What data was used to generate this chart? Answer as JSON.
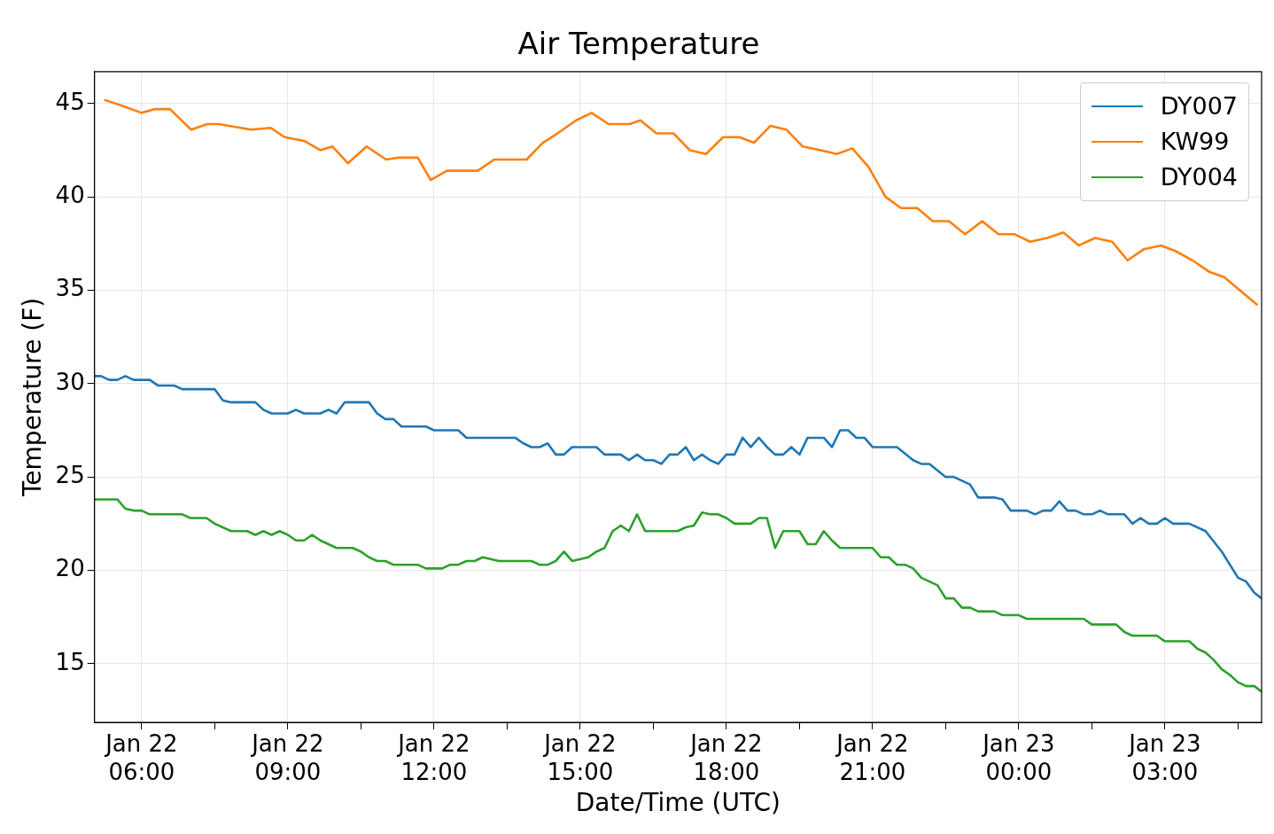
{
  "chart_data": {
    "type": "line",
    "title": "Air Temperature",
    "xlabel": "Date/Time (UTC)",
    "ylabel": "Temperature (F)",
    "xlim": [
      "--01-22T05:02",
      "--01-23T04:59"
    ],
    "ylim": [
      11.86,
      46.71
    ],
    "xticks": [
      {
        "value": "--01-22T06:00",
        "label": "Jan 22\n06:00"
      },
      {
        "value": "--01-22T07:30",
        "label": null
      },
      {
        "value": "--01-22T09:00",
        "label": "Jan 22\n09:00"
      },
      {
        "value": "--01-22T10:30",
        "label": null
      },
      {
        "value": "--01-22T12:00",
        "label": "Jan 22\n12:00"
      },
      {
        "value": "--01-22T13:30",
        "label": null
      },
      {
        "value": "--01-22T15:00",
        "label": "Jan 22\n15:00"
      },
      {
        "value": "--01-22T16:30",
        "label": null
      },
      {
        "value": "--01-22T18:00",
        "label": "Jan 22\n18:00"
      },
      {
        "value": "--01-22T19:30",
        "label": null
      },
      {
        "value": "--01-22T21:00",
        "label": "Jan 22\n21:00"
      },
      {
        "value": "--01-22T22:30",
        "label": null
      },
      {
        "value": "--01-23T00:00",
        "label": "Jan 23\n00:00"
      },
      {
        "value": "--01-23T01:30",
        "label": null
      },
      {
        "value": "--01-23T03:00",
        "label": "Jan 23\n03:00"
      },
      {
        "value": "--01-23T04:30",
        "label": null
      }
    ],
    "yticks": [
      15,
      20,
      25,
      30,
      35,
      40,
      45
    ],
    "grid": true,
    "legend": "top right",
    "series": [
      {
        "name": "DY007",
        "color": "#1f77b4",
        "x": [
          "--01-22T05:02",
          "--01-22T05:10",
          "--01-22T05:20",
          "--01-22T05:30",
          "--01-22T05:40",
          "--01-22T05:50",
          "--01-22T06:10",
          "--01-22T06:20",
          "--01-22T06:40",
          "--01-22T06:50",
          "--01-22T07:30",
          "--01-22T07:40",
          "--01-22T07:50",
          "--01-22T08:20",
          "--01-22T08:30",
          "--01-22T08:40",
          "--01-22T09:00",
          "--01-22T09:10",
          "--01-22T09:20",
          "--01-22T09:40",
          "--01-22T09:50",
          "--01-22T10:00",
          "--01-22T10:10",
          "--01-22T10:40",
          "--01-22T10:50",
          "--01-22T11:00",
          "--01-22T11:10",
          "--01-22T11:20",
          "--01-22T11:50",
          "--01-22T12:00",
          "--01-22T12:30",
          "--01-22T12:40",
          "--01-22T13:05",
          "--01-22T13:40",
          "--01-22T13:50",
          "--01-22T14:00",
          "--01-22T14:10",
          "--01-22T14:20",
          "--01-22T14:30",
          "--01-22T14:40",
          "--01-22T14:50",
          "--01-22T15:20",
          "--01-22T15:30",
          "--01-22T15:50",
          "--01-22T16:00",
          "--01-22T16:10",
          "--01-22T16:20",
          "--01-22T16:30",
          "--01-22T16:40",
          "--01-22T16:50",
          "--01-22T17:00",
          "--01-22T17:10",
          "--01-22T17:20",
          "--01-22T17:30",
          "--01-22T17:40",
          "--01-22T17:50",
          "--01-22T18:00",
          "--01-22T18:10",
          "--01-22T18:20",
          "--01-22T18:30",
          "--01-22T18:40",
          "--01-22T18:50",
          "--01-22T19:00",
          "--01-22T19:10",
          "--01-22T19:20",
          "--01-22T19:30",
          "--01-22T19:40",
          "--01-22T20:00",
          "--01-22T20:10",
          "--01-22T20:20",
          "--01-22T20:30",
          "--01-22T20:40",
          "--01-22T20:50",
          "--01-22T21:00",
          "--01-22T21:30",
          "--01-22T21:50",
          "--01-22T22:00",
          "--01-22T22:10",
          "--01-22T22:30",
          "--01-22T22:40",
          "--01-22T23:00",
          "--01-22T23:10",
          "--01-22T23:30",
          "--01-22T23:40",
          "--01-22T23:50",
          "--01-23T00:10",
          "--01-23T00:20",
          "--01-23T00:30",
          "--01-23T00:40",
          "--01-23T00:50",
          "--01-23T01:00",
          "--01-23T01:10",
          "--01-23T01:20",
          "--01-23T01:30",
          "--01-23T01:40",
          "--01-23T01:50",
          "--01-23T02:10",
          "--01-23T02:20",
          "--01-23T02:30",
          "--01-23T02:40",
          "--01-23T02:50",
          "--01-23T03:00",
          "--01-23T03:10",
          "--01-23T03:30",
          "--01-23T03:50",
          "--01-23T04:10",
          "--01-23T04:30",
          "--01-23T04:40",
          "--01-23T04:50",
          "--01-23T04:59"
        ],
        "values": [
          30.4,
          30.4,
          30.2,
          30.2,
          30.4,
          30.2,
          30.2,
          29.9,
          29.9,
          29.7,
          29.7,
          29.1,
          29.0,
          29.0,
          28.6,
          28.4,
          28.4,
          28.6,
          28.4,
          28.4,
          28.6,
          28.4,
          29.0,
          29.0,
          28.4,
          28.1,
          28.1,
          27.7,
          27.7,
          27.5,
          27.5,
          27.1,
          27.1,
          27.1,
          26.8,
          26.6,
          26.6,
          26.8,
          26.2,
          26.2,
          26.6,
          26.6,
          26.2,
          26.2,
          25.9,
          26.2,
          25.9,
          25.9,
          25.7,
          26.2,
          26.2,
          26.6,
          25.9,
          26.2,
          25.9,
          25.7,
          26.2,
          26.2,
          27.1,
          26.6,
          27.1,
          26.6,
          26.2,
          26.2,
          26.6,
          26.2,
          27.1,
          27.1,
          26.6,
          27.5,
          27.5,
          27.1,
          27.1,
          26.6,
          26.6,
          25.9,
          25.7,
          25.7,
          25.0,
          25.0,
          24.6,
          23.9,
          23.9,
          23.8,
          23.2,
          23.2,
          23.0,
          23.2,
          23.2,
          23.7,
          23.2,
          23.2,
          23.0,
          23.0,
          23.2,
          23.0,
          23.0,
          22.5,
          22.8,
          22.5,
          22.5,
          22.8,
          22.5,
          22.5,
          22.1,
          21.0,
          19.6,
          19.4,
          18.8,
          18.5
        ]
      },
      {
        "name": "KW99",
        "color": "#ff7f0e",
        "x": [
          "--01-22T05:14",
          "--01-22T05:35",
          "--01-22T06:00",
          "--01-22T06:16",
          "--01-22T06:35",
          "--01-22T07:01",
          "--01-22T07:21",
          "--01-22T07:35",
          "--01-22T08:15",
          "--01-22T08:39",
          "--01-22T08:56",
          "--01-22T09:20",
          "--01-22T09:40",
          "--01-22T09:55",
          "--01-22T10:14",
          "--01-22T10:37",
          "--01-22T11:01",
          "--01-22T11:15",
          "--01-22T11:40",
          "--01-22T11:56",
          "--01-22T12:16",
          "--01-22T12:54",
          "--01-22T13:14",
          "--01-22T13:54",
          "--01-22T14:14",
          "--01-22T14:32",
          "--01-22T14:55",
          "--01-22T15:14",
          "--01-22T15:35",
          "--01-22T16:01",
          "--01-22T16:14",
          "--01-22T16:34",
          "--01-22T16:55",
          "--01-22T17:15",
          "--01-22T17:35",
          "--01-22T17:56",
          "--01-22T18:16",
          "--01-22T18:34",
          "--01-22T18:54",
          "--01-22T19:14",
          "--01-22T19:34",
          "--01-22T19:56",
          "--01-22T20:16",
          "--01-22T20:35",
          "--01-22T20:55",
          "--01-22T21:16",
          "--01-22T21:35",
          "--01-22T21:55",
          "--01-22T22:14",
          "--01-22T22:34",
          "--01-22T22:54",
          "--01-22T23:15",
          "--01-22T23:35",
          "--01-22T23:55",
          "--01-23T00:14",
          "--01-23T00:35",
          "--01-23T00:55",
          "--01-23T01:14",
          "--01-23T01:34",
          "--01-23T01:55",
          "--01-23T02:14",
          "--01-23T02:34",
          "--01-23T02:55",
          "--01-23T03:13",
          "--01-23T03:34",
          "--01-23T03:54",
          "--01-23T04:13",
          "--01-23T04:54"
        ],
        "values": [
          45.2,
          44.9,
          44.5,
          44.7,
          44.7,
          43.6,
          43.9,
          43.9,
          43.6,
          43.7,
          43.2,
          43.0,
          42.5,
          42.7,
          41.8,
          42.7,
          42.0,
          42.1,
          42.1,
          40.9,
          41.4,
          41.4,
          42.0,
          42.0,
          42.9,
          43.4,
          44.1,
          44.5,
          43.9,
          43.9,
          44.1,
          43.4,
          43.4,
          42.5,
          42.3,
          43.2,
          43.2,
          42.9,
          43.8,
          43.6,
          42.7,
          42.5,
          42.3,
          42.6,
          41.6,
          40.0,
          39.4,
          39.4,
          38.7,
          38.7,
          38.0,
          38.7,
          38.0,
          38.0,
          37.6,
          37.8,
          38.1,
          37.4,
          37.8,
          37.6,
          36.6,
          37.2,
          37.4,
          37.1,
          36.6,
          36.0,
          35.7,
          34.2
        ]
      },
      {
        "name": "DY004",
        "color": "#2ca02c",
        "x": [
          "--01-22T05:02",
          "--01-22T05:30",
          "--01-22T05:40",
          "--01-22T05:50",
          "--01-22T06:00",
          "--01-22T06:10",
          "--01-22T06:50",
          "--01-22T07:00",
          "--01-22T07:20",
          "--01-22T07:30",
          "--01-22T07:40",
          "--01-22T07:50",
          "--01-22T08:10",
          "--01-22T08:20",
          "--01-22T08:30",
          "--01-22T08:40",
          "--01-22T08:50",
          "--01-22T09:00",
          "--01-22T09:10",
          "--01-22T09:20",
          "--01-22T09:30",
          "--01-22T09:40",
          "--01-22T09:50",
          "--01-22T10:00",
          "--01-22T10:20",
          "--01-22T10:30",
          "--01-22T10:40",
          "--01-22T10:50",
          "--01-22T11:00",
          "--01-22T11:10",
          "--01-22T11:40",
          "--01-22T11:50",
          "--01-22T12:10",
          "--01-22T12:20",
          "--01-22T12:30",
          "--01-22T12:40",
          "--01-22T12:50",
          "--01-22T13:00",
          "--01-22T13:20",
          "--01-22T14:00",
          "--01-22T14:10",
          "--01-22T14:20",
          "--01-22T14:30",
          "--01-22T14:40",
          "--01-22T14:50",
          "--01-22T15:10",
          "--01-22T15:20",
          "--01-22T15:30",
          "--01-22T15:40",
          "--01-22T15:50",
          "--01-22T16:00",
          "--01-22T16:10",
          "--01-22T16:20",
          "--01-22T17:00",
          "--01-22T17:10",
          "--01-22T17:20",
          "--01-22T17:30",
          "--01-22T17:40",
          "--01-22T17:50",
          "--01-22T18:00",
          "--01-22T18:10",
          "--01-22T18:30",
          "--01-22T18:40",
          "--01-22T18:50",
          "--01-22T19:00",
          "--01-22T19:10",
          "--01-22T19:30",
          "--01-22T19:40",
          "--01-22T19:50",
          "--01-22T20:00",
          "--01-22T20:10",
          "--01-22T20:20",
          "--01-22T21:00",
          "--01-22T21:10",
          "--01-22T21:20",
          "--01-22T21:30",
          "--01-22T21:40",
          "--01-22T21:50",
          "--01-22T22:00",
          "--01-22T22:20",
          "--01-22T22:30",
          "--01-22T22:40",
          "--01-22T22:50",
          "--01-22T23:00",
          "--01-22T23:10",
          "--01-22T23:30",
          "--01-22T23:40",
          "--01-23T00:00",
          "--01-23T00:10",
          "--01-23T01:20",
          "--01-23T01:30",
          "--01-23T02:00",
          "--01-23T02:10",
          "--01-23T02:20",
          "--01-23T02:50",
          "--01-23T03:00",
          "--01-23T03:30",
          "--01-23T03:40",
          "--01-23T03:50",
          "--01-23T04:00",
          "--01-23T04:10",
          "--01-23T04:20",
          "--01-23T04:30",
          "--01-23T04:40",
          "--01-23T04:50",
          "--01-23T04:59"
        ],
        "values": [
          23.8,
          23.8,
          23.3,
          23.2,
          23.2,
          23.0,
          23.0,
          22.8,
          22.8,
          22.5,
          22.3,
          22.1,
          22.1,
          21.9,
          22.1,
          21.9,
          22.1,
          21.9,
          21.6,
          21.6,
          21.9,
          21.6,
          21.4,
          21.2,
          21.2,
          21.0,
          20.7,
          20.5,
          20.5,
          20.3,
          20.3,
          20.1,
          20.1,
          20.3,
          20.3,
          20.5,
          20.5,
          20.7,
          20.5,
          20.5,
          20.3,
          20.3,
          20.5,
          21.0,
          20.5,
          20.7,
          21.0,
          21.2,
          22.1,
          22.4,
          22.1,
          23.0,
          22.1,
          22.1,
          22.3,
          22.4,
          23.1,
          23.0,
          23.0,
          22.8,
          22.5,
          22.5,
          22.8,
          22.8,
          21.2,
          22.1,
          22.1,
          21.4,
          21.4,
          22.1,
          21.6,
          21.2,
          21.2,
          20.7,
          20.7,
          20.3,
          20.3,
          20.1,
          19.6,
          19.2,
          18.5,
          18.5,
          18.0,
          18.0,
          17.8,
          17.8,
          17.6,
          17.6,
          17.4,
          17.4,
          17.1,
          17.1,
          16.7,
          16.5,
          16.5,
          16.2,
          16.2,
          15.8,
          15.6,
          15.2,
          14.7,
          14.4,
          14.0,
          13.8,
          13.8,
          13.5
        ]
      }
    ]
  }
}
